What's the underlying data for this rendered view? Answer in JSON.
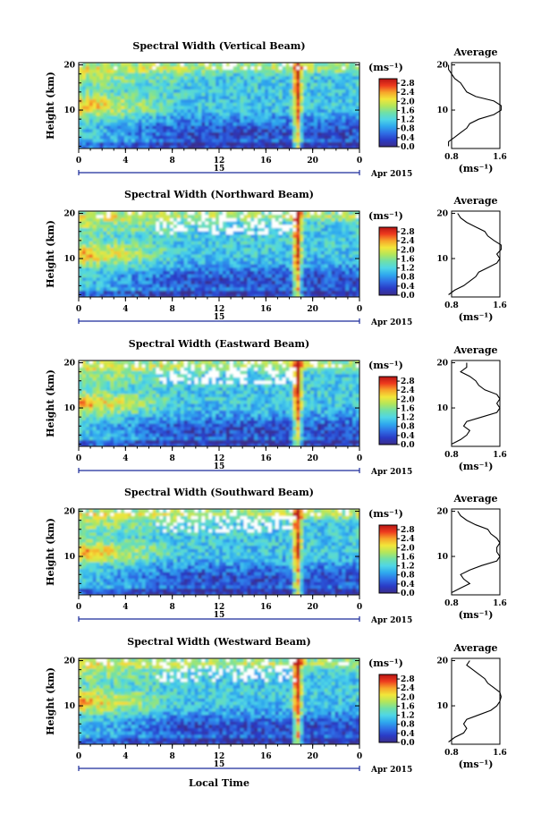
{
  "colors": {
    "colormap": [
      "#3b2d8a",
      "#2a3bc6",
      "#2f6fe6",
      "#2fa9ee",
      "#4fd6e6",
      "#6fe0a8",
      "#b4e65a",
      "#f2e63a",
      "#f7a52a",
      "#ee3a1e",
      "#b81414"
    ]
  },
  "colorbar": {
    "unit": "(ms⁻¹)",
    "ticks": [
      "2.8",
      "2.4",
      "2.0",
      "1.6",
      "1.2",
      "0.8",
      "0.4",
      "0.0"
    ]
  },
  "profile_panel": {
    "title": "Average",
    "xlabel": "(ms⁻¹)",
    "xticks": [
      "0.8",
      "1.6"
    ]
  },
  "x_axis": {
    "ticks": [
      "0",
      "4",
      "8",
      "12",
      "16",
      "20",
      "0"
    ],
    "day_label": "15",
    "month_label": "Apr 2015",
    "xlabel": "Local Time"
  },
  "y_axis": {
    "label": "Height (km)",
    "ticks": [
      "20",
      "10"
    ]
  },
  "chart_data": [
    {
      "type": "heatmap",
      "title": "Spectral Width (Vertical Beam)",
      "x_unit": "local time (h)",
      "xlim": [
        0,
        24
      ],
      "y_unit": "km",
      "ylim": [
        1.5,
        20.5
      ],
      "color_range": [
        0.0,
        3.0
      ],
      "mean_profile": {
        "height_km": [
          2,
          3,
          4,
          5,
          6,
          7,
          8,
          9,
          10,
          11,
          12,
          13,
          14,
          15,
          16,
          17,
          18,
          19,
          20
        ],
        "spectral_width_ms": [
          0.65,
          0.75,
          0.85,
          0.95,
          1.05,
          1.1,
          1.25,
          1.5,
          1.75,
          1.85,
          1.5,
          1.2,
          1.05,
          1.0,
          0.95,
          0.85,
          0.8,
          0.75,
          0.7
        ]
      }
    },
    {
      "type": "heatmap",
      "title": "Spectral Width (Northward Beam)",
      "x_unit": "local time (h)",
      "xlim": [
        0,
        24
      ],
      "y_unit": "km",
      "ylim": [
        1.5,
        20.5
      ],
      "color_range": [
        0.0,
        3.0
      ],
      "mean_profile": {
        "height_km": [
          2,
          3,
          4,
          5,
          6,
          7,
          8,
          9,
          10,
          11,
          12,
          13,
          14,
          15,
          16,
          17,
          18,
          19,
          20
        ],
        "spectral_width_ms": [
          0.75,
          0.85,
          1.0,
          1.1,
          1.2,
          1.25,
          1.4,
          1.55,
          1.6,
          1.55,
          1.7,
          1.65,
          1.5,
          1.4,
          1.35,
          1.2,
          1.05,
          0.95,
          0.9
        ]
      }
    },
    {
      "type": "heatmap",
      "title": "Spectral Width (Eastward Beam)",
      "x_unit": "local time (h)",
      "xlim": [
        0,
        24
      ],
      "y_unit": "km",
      "ylim": [
        1.5,
        20.5
      ],
      "color_range": [
        0.0,
        3.0
      ],
      "mean_profile": {
        "height_km": [
          2,
          3,
          4,
          5,
          6,
          7,
          8,
          9,
          10,
          11,
          12,
          13,
          14,
          15,
          16,
          17,
          18,
          19,
          20
        ],
        "spectral_width_ms": [
          0.8,
          0.95,
          1.05,
          1.1,
          1.0,
          1.05,
          1.3,
          1.55,
          1.6,
          1.55,
          1.6,
          1.55,
          1.35,
          1.25,
          1.2,
          1.1,
          0.95,
          1.05,
          1.05
        ]
      }
    },
    {
      "type": "heatmap",
      "title": "Spectral Width (Southward Beam)",
      "x_unit": "local time (h)",
      "xlim": [
        0,
        24
      ],
      "y_unit": "km",
      "ylim": [
        1.5,
        20.5
      ],
      "color_range": [
        0.0,
        3.0
      ],
      "mean_profile": {
        "height_km": [
          2,
          3,
          4,
          5,
          6,
          7,
          8,
          9,
          10,
          11,
          12,
          13,
          14,
          15,
          16,
          17,
          18,
          19,
          20
        ],
        "spectral_width_ms": [
          0.8,
          0.95,
          1.1,
          1.0,
          0.95,
          1.1,
          1.3,
          1.55,
          1.6,
          1.55,
          1.55,
          1.6,
          1.55,
          1.45,
          1.4,
          1.2,
          1.05,
          0.95,
          0.9
        ]
      }
    },
    {
      "type": "heatmap",
      "title": "Spectral Width (Westward Beam)",
      "x_unit": "local time (h)",
      "xlim": [
        0,
        24
      ],
      "y_unit": "km",
      "ylim": [
        1.5,
        20.5
      ],
      "color_range": [
        0.0,
        3.0
      ],
      "mean_profile": {
        "height_km": [
          2,
          3,
          4,
          5,
          6,
          7,
          8,
          9,
          10,
          11,
          12,
          13,
          14,
          15,
          16,
          17,
          18,
          19,
          20
        ],
        "spectral_width_ms": [
          0.75,
          0.85,
          1.0,
          1.05,
          1.0,
          1.05,
          1.25,
          1.45,
          1.55,
          1.6,
          1.65,
          1.6,
          1.5,
          1.4,
          1.35,
          1.25,
          1.15,
          1.05,
          1.1
        ]
      }
    }
  ]
}
